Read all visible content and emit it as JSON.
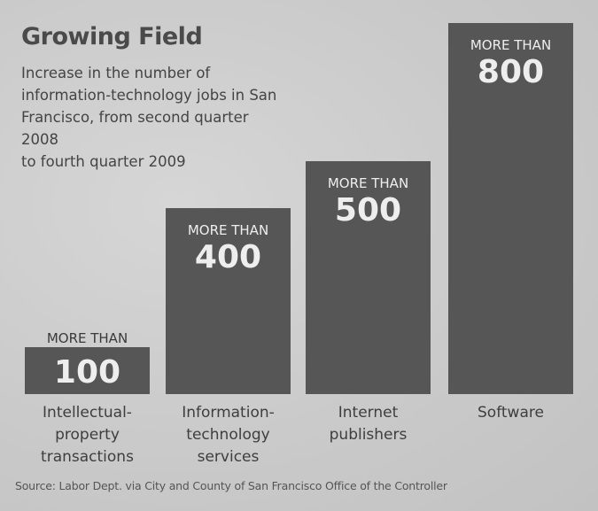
{
  "chart_data": {
    "type": "bar",
    "title": "Growing Field",
    "subtitle": "Increase in the number of information-technology jobs in San Francisco, from second quarter 2008 to fourth quarter 2009",
    "subtitle_lines": [
      "Increase in the number of",
      "information-technology jobs in San",
      "Francisco, from second quarter 2008",
      "to fourth quarter 2009"
    ],
    "categories": [
      [
        "Intellectual-",
        "property",
        "transactions"
      ],
      [
        "Information-",
        "technology",
        "services"
      ],
      [
        "Internet",
        "publishers"
      ],
      [
        "Software"
      ]
    ],
    "values": [
      100,
      400,
      500,
      800
    ],
    "value_labels": [
      "100",
      "400",
      "500",
      "800"
    ],
    "value_prefix": "MORE THAN",
    "xlabel": "",
    "ylabel": "",
    "ylim": [
      0,
      800
    ],
    "grid": false,
    "legend": "none",
    "source": "Source: Labor Dept. via City and County of San Francisco Office of the Controller",
    "colors": {
      "bar": "#565656",
      "bar_text": "#eeeeee",
      "text": "#444444"
    }
  }
}
